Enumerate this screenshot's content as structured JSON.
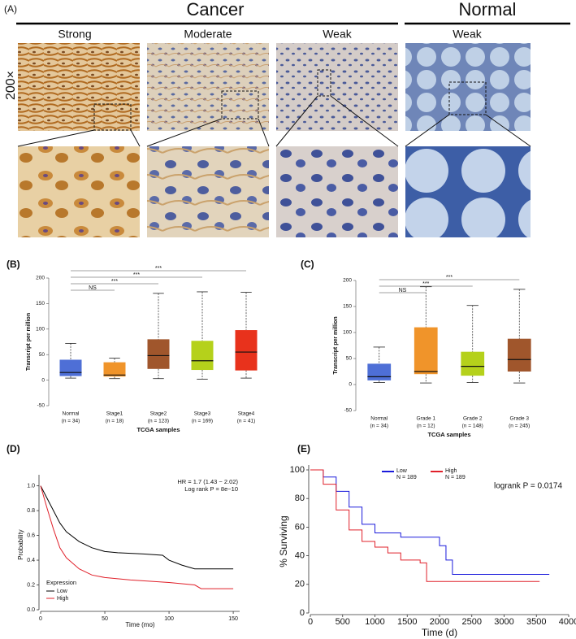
{
  "panel_a": {
    "label": "(A)",
    "groups": [
      {
        "title": "Cancer"
      },
      {
        "title": "Normal"
      }
    ],
    "columns": [
      "Strong",
      "Moderate",
      "Weak",
      "Weak"
    ],
    "magnification": "200×"
  },
  "chart_data": [
    {
      "type": "box",
      "panel_label": "(B)",
      "x_label": "TCGA samples",
      "y_label": "Transcript per million",
      "categories": [
        "Normal",
        "Stage1",
        "Stage2",
        "Stage3",
        "Stage4"
      ],
      "n_labels": [
        "(n = 34)",
        "(n = 18)",
        "(n = 123)",
        "(n = 169)",
        "(n = 41)"
      ],
      "boxes": [
        {
          "min": 4,
          "q1": 8,
          "median": 15,
          "q3": 40,
          "max": 72,
          "color": "#4e6fd6"
        },
        {
          "min": 3,
          "q1": 7,
          "median": 10,
          "q3": 35,
          "max": 43,
          "color": "#f0942a"
        },
        {
          "min": 3,
          "q1": 22,
          "median": 48,
          "q3": 80,
          "max": 170,
          "color": "#a0562c"
        },
        {
          "min": 2,
          "q1": 20,
          "median": 38,
          "q3": 77,
          "max": 173,
          "color": "#b5d11b"
        },
        {
          "min": 4,
          "q1": 19,
          "median": 55,
          "q3": 98,
          "max": 172,
          "color": "#e8321c"
        }
      ],
      "ylim": [
        -50,
        200
      ],
      "yticks": [
        -50,
        0,
        50,
        100,
        150,
        200
      ],
      "brackets": [
        {
          "label": "NS",
          "between": [
            "Normal",
            "Stage1"
          ]
        },
        {
          "label": "***",
          "between": [
            "Normal",
            "Stage2"
          ]
        },
        {
          "label": "***",
          "between": [
            "Normal",
            "Stage3"
          ]
        },
        {
          "label": "***",
          "between": [
            "Normal",
            "Stage4"
          ]
        }
      ]
    },
    {
      "type": "box",
      "panel_label": "(C)",
      "x_label": "TCGA samples",
      "y_label": "Transcript per million",
      "categories": [
        "Normal",
        "Grade 1",
        "Grade 2",
        "Grade 3"
      ],
      "n_labels": [
        "(n = 34)",
        "(n = 12)",
        "(n = 148)",
        "(n = 245)"
      ],
      "boxes": [
        {
          "min": 4,
          "q1": 8,
          "median": 15,
          "q3": 40,
          "max": 72,
          "color": "#4e6fd6"
        },
        {
          "min": 3,
          "q1": 20,
          "median": 25,
          "q3": 110,
          "max": 188,
          "color": "#f0942a"
        },
        {
          "min": 4,
          "q1": 17,
          "median": 35,
          "q3": 63,
          "max": 152,
          "color": "#b5d11b"
        },
        {
          "min": 3,
          "q1": 25,
          "median": 48,
          "q3": 88,
          "max": 183,
          "color": "#a0562c"
        }
      ],
      "ylim": [
        -50,
        200
      ],
      "yticks": [
        -50,
        0,
        50,
        100,
        150,
        200
      ],
      "brackets": [
        {
          "label": "NS",
          "between": [
            "Normal",
            "Grade 1"
          ]
        },
        {
          "label": "***",
          "between": [
            "Normal",
            "Grade 2"
          ]
        },
        {
          "label": "***",
          "between": [
            "Normal",
            "Grade 3"
          ]
        }
      ]
    },
    {
      "type": "km",
      "panel_label": "(D)",
      "x_label": "Time (mo)",
      "y_label": "Probability",
      "annotations": [
        "HR = 1.7 (1.43 − 2.02)",
        "Log rank P = 8e−10"
      ],
      "legend_title": "Expression",
      "xlim": [
        0,
        155
      ],
      "xticks": [
        0,
        50,
        100,
        150
      ],
      "ylim": [
        0,
        1.05
      ],
      "yticks": [
        {
          "value": 0,
          "label": "0.0"
        },
        {
          "value": 0.2,
          "label": "0.2"
        },
        {
          "value": 0.4,
          "label": "0.4"
        },
        {
          "value": 0.6,
          "label": "0.6"
        },
        {
          "value": 0.8,
          "label": "0.8"
        },
        {
          "value": 1,
          "label": "1.0"
        }
      ],
      "series": [
        {
          "name": "Low",
          "color": "#000000",
          "x": [
            0,
            5,
            10,
            15,
            20,
            30,
            40,
            50,
            60,
            80,
            95,
            100,
            110,
            120,
            150
          ],
          "values": [
            1,
            0.9,
            0.8,
            0.7,
            0.63,
            0.55,
            0.5,
            0.47,
            0.46,
            0.45,
            0.44,
            0.4,
            0.36,
            0.33,
            0.33
          ]
        },
        {
          "name": "High",
          "color": "#e0202a",
          "x": [
            0,
            5,
            10,
            15,
            20,
            30,
            40,
            50,
            70,
            100,
            120,
            125,
            150
          ],
          "values": [
            1,
            0.82,
            0.65,
            0.5,
            0.42,
            0.33,
            0.28,
            0.26,
            0.24,
            0.22,
            0.2,
            0.17,
            0.17
          ]
        }
      ]
    },
    {
      "type": "km",
      "panel_label": "(E)",
      "x_label": "Time (d)",
      "y_label": "% Surviving",
      "annotations": [
        "logrank P = 0.0174"
      ],
      "xlim": [
        0,
        4000
      ],
      "xticks": [
        0,
        500,
        1000,
        1500,
        2000,
        2500,
        3000,
        3500,
        4000
      ],
      "ylim": [
        0,
        100
      ],
      "yticks": [
        0,
        20,
        40,
        60,
        80,
        100
      ],
      "series": [
        {
          "name": "Low",
          "n_label": "N = 189",
          "color": "#1a1adb",
          "x": [
            0,
            200,
            200,
            400,
            400,
            600,
            600,
            800,
            800,
            1000,
            1000,
            1400,
            1400,
            2000,
            2000,
            2100,
            2100,
            2200,
            2200,
            3700
          ],
          "values": [
            100,
            100,
            95,
            95,
            85,
            85,
            74,
            74,
            62,
            62,
            56,
            56,
            53,
            53,
            47,
            47,
            37,
            37,
            27,
            27
          ]
        },
        {
          "name": "High",
          "n_label": "N = 189",
          "color": "#e0202a",
          "x": [
            0,
            200,
            200,
            400,
            400,
            600,
            600,
            800,
            800,
            1000,
            1000,
            1200,
            1200,
            1400,
            1400,
            1700,
            1700,
            1800,
            1800,
            3550
          ],
          "values": [
            100,
            100,
            90,
            90,
            72,
            72,
            58,
            58,
            50,
            50,
            46,
            46,
            42,
            42,
            37,
            37,
            35,
            35,
            22,
            22
          ]
        }
      ]
    }
  ]
}
